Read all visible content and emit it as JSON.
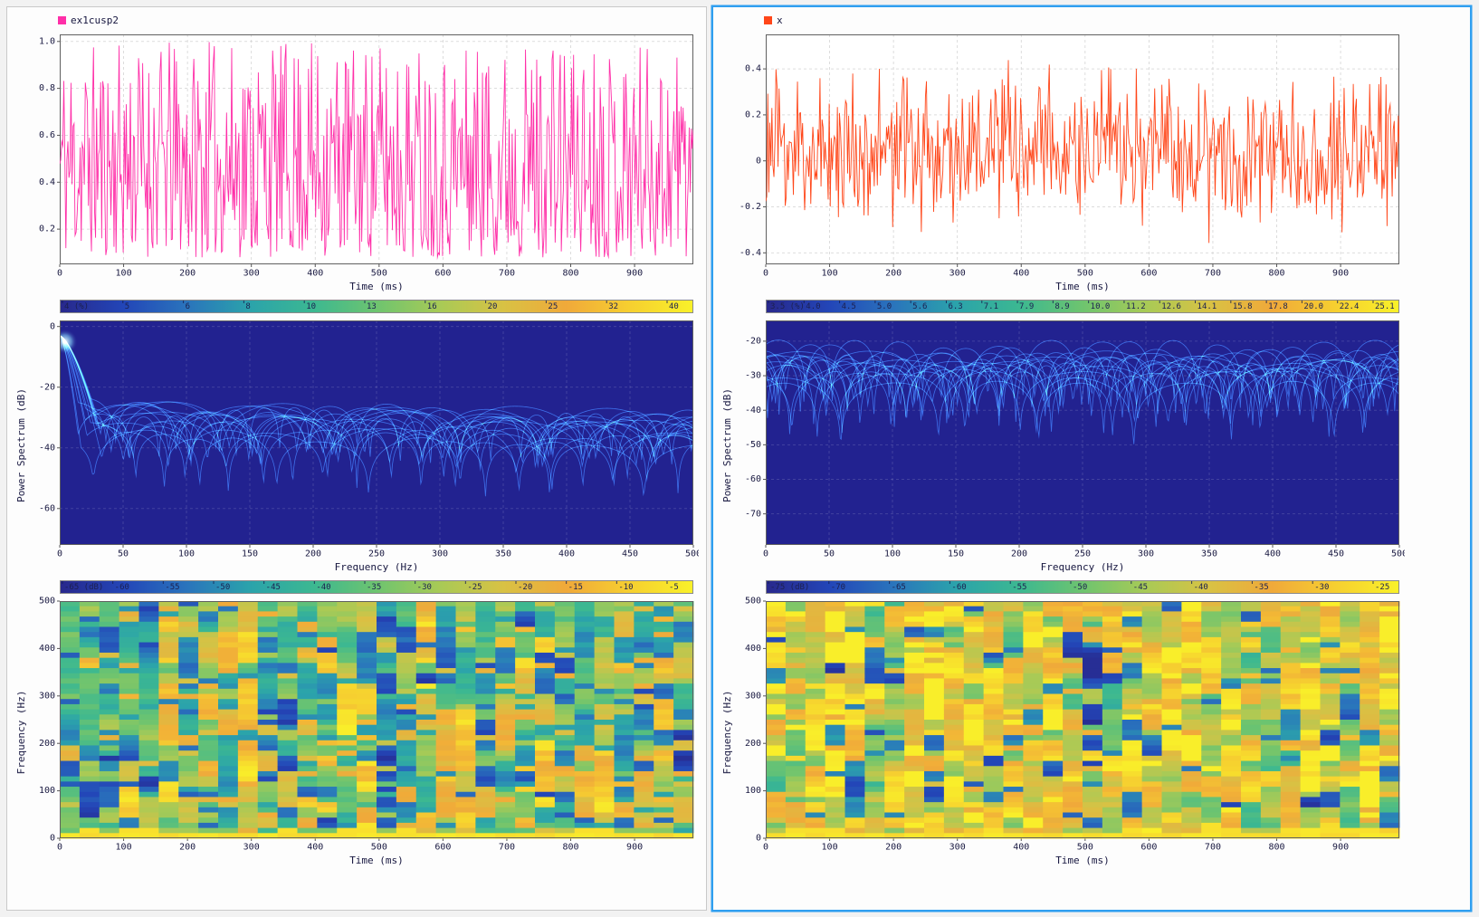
{
  "app": {
    "background_color": "#f2f2f2",
    "selection_color": "#2f9ff0"
  },
  "panels": [
    {
      "name": "left",
      "selected": false
    },
    {
      "name": "right",
      "selected": true
    }
  ],
  "chart_data": [
    {
      "panel": "left",
      "role": "waveform",
      "type": "line",
      "label": "ex1cusp2",
      "color": "#ff2fa8",
      "xlabel": "Time (ms)",
      "ylabel": "",
      "xlim": [
        0,
        992
      ],
      "ylim": [
        0.05,
        1.03
      ],
      "xticks": [
        0,
        100,
        200,
        300,
        400,
        500,
        600,
        700,
        800,
        900
      ],
      "yticks": [
        0.2,
        0.4,
        0.6,
        0.8,
        1.0
      ],
      "ytick_labels": [
        "0.2",
        "0.4",
        "0.6",
        "0.8",
        "1.0"
      ],
      "grid": true,
      "signal": {
        "kind": "uniform-positive-noise",
        "n": 620,
        "seed": 11,
        "min": 0.08,
        "max": 1.0,
        "skew": 1.25,
        "description": "dense noisy positive signal, values approx 0.1 to 1.0, mean approx 0.42"
      }
    },
    {
      "panel": "left",
      "role": "power-spectrum",
      "type": "line-ensemble",
      "xlabel": "Frequency (Hz)",
      "ylabel": "Power Spectrum (dB)",
      "xlim": [
        0,
        500
      ],
      "ylim": [
        -72,
        2
      ],
      "xticks": [
        0,
        50,
        100,
        150,
        200,
        250,
        300,
        350,
        400,
        450,
        500
      ],
      "yticks": [
        0,
        -20,
        -40,
        -60
      ],
      "ytick_labels": [
        "0",
        "-20",
        "-40",
        "-60"
      ],
      "background": "#222290",
      "curve_color": "#44c2da",
      "curves": {
        "count": 16,
        "seed": 31,
        "plateau": -30,
        "start_db": -3,
        "mainlobe": true,
        "tilt": -4,
        "description": "overlapping windowed spectra: peak near 0 dB at 0 Hz, plateau around -25 to -35 dB with periodic deep lobes to -50/-65 dB"
      },
      "colormap": [
        "#28288c",
        "#2346b8",
        "#2a74bc",
        "#2ba3ab",
        "#3cb891",
        "#6ec46f",
        "#a8ca56",
        "#d8c244",
        "#f0a93a",
        "#f6cf30",
        "#f9f129"
      ],
      "colorbar": {
        "unit": "(%)",
        "labels": [
          "4",
          "5",
          "6",
          "8",
          "10",
          "13",
          "16",
          "20",
          "25",
          "32",
          "40"
        ]
      }
    },
    {
      "panel": "left",
      "role": "spectrogram",
      "type": "heatmap",
      "xlabel": "Time (ms)",
      "ylabel": "Frequency (Hz)",
      "xlim": [
        0,
        992
      ],
      "ylim": [
        0,
        500
      ],
      "xticks": [
        0,
        100,
        200,
        300,
        400,
        500,
        600,
        700,
        800,
        900
      ],
      "yticks": [
        0,
        100,
        200,
        300,
        400,
        500
      ],
      "ytick_labels": [
        "0",
        "100",
        "200",
        "300",
        "400",
        "500"
      ],
      "grid": {
        "cols": 32,
        "rows": 46,
        "seed": 51,
        "base": 0.52,
        "spread": 0.36,
        "streak_chance": 0.05,
        "bottom_value": 0.95,
        "description": "teal/green/yellow time-frequency map, roughly -65 to -5 dB, bright yellow band at lowest frequencies, scattered dark blue notches"
      },
      "colormap": [
        "#28288c",
        "#2346b8",
        "#2a74bc",
        "#2ba3ab",
        "#3cb891",
        "#6ec46f",
        "#a8ca56",
        "#d8c244",
        "#f0a93a",
        "#f6cf30",
        "#f9f129"
      ],
      "colorbar": {
        "unit": "(dB)",
        "labels": [
          "-65",
          "-60",
          "-55",
          "-50",
          "-45",
          "-40",
          "-35",
          "-30",
          "-25",
          "-20",
          "-15",
          "-10",
          "-5"
        ]
      }
    },
    {
      "panel": "right",
      "role": "waveform",
      "type": "line",
      "label": "x",
      "color": "#ff4619",
      "xlabel": "Time (ms)",
      "ylabel": "",
      "xlim": [
        0,
        992
      ],
      "ylim": [
        -0.45,
        0.55
      ],
      "xticks": [
        0,
        100,
        200,
        300,
        400,
        500,
        600,
        700,
        800,
        900
      ],
      "yticks": [
        -0.4,
        -0.2,
        0,
        0.2,
        0.4
      ],
      "ytick_labels": [
        "-0.4",
        "-0.2",
        "0",
        "0.2",
        "0.4"
      ],
      "grid": true,
      "signal": {
        "kind": "triangular-centered-noise",
        "n": 620,
        "seed": 23,
        "min": -0.42,
        "max": 0.52,
        "description": "zero-mean noisy signal, values approx -0.4 to +0.5"
      }
    },
    {
      "panel": "right",
      "role": "power-spectrum",
      "type": "line-ensemble",
      "xlabel": "Frequency (Hz)",
      "ylabel": "Power Spectrum (dB)",
      "xlim": [
        0,
        500
      ],
      "ylim": [
        -79,
        -14
      ],
      "xticks": [
        0,
        50,
        100,
        150,
        200,
        250,
        300,
        350,
        400,
        450,
        500
      ],
      "yticks": [
        -20,
        -30,
        -40,
        -50,
        -60,
        -70
      ],
      "ytick_labels": [
        "-20",
        "-30",
        "-40",
        "-50",
        "-60",
        "-70"
      ],
      "background": "#222290",
      "curve_color": "#44c2da",
      "curves": {
        "count": 16,
        "seed": 41,
        "plateau": -26,
        "start_db": -26,
        "mainlobe": false,
        "tilt": 0,
        "description": "overlapping spectra oscillating between about -20 and -45 dB across all frequencies with periodic deep lobes"
      },
      "colormap": [
        "#28288c",
        "#2346b8",
        "#2a74bc",
        "#2ba3ab",
        "#3cb891",
        "#6ec46f",
        "#a8ca56",
        "#d8c244",
        "#f0a93a",
        "#f6cf30",
        "#f9f129"
      ],
      "colorbar": {
        "unit": "(%)",
        "labels": [
          "3.5",
          "4.0",
          "4.5",
          "5.0",
          "5.6",
          "6.3",
          "7.1",
          "7.9",
          "8.9",
          "10.0",
          "11.2",
          "12.6",
          "14.1",
          "15.8",
          "17.8",
          "20.0",
          "22.4",
          "25.1"
        ]
      }
    },
    {
      "panel": "right",
      "role": "spectrogram",
      "type": "heatmap",
      "xlabel": "Time (ms)",
      "ylabel": "Frequency (Hz)",
      "xlim": [
        0,
        992
      ],
      "ylim": [
        0,
        500
      ],
      "xticks": [
        0,
        100,
        200,
        300,
        400,
        500,
        600,
        700,
        800,
        900
      ],
      "yticks": [
        0,
        100,
        200,
        300,
        400,
        500
      ],
      "ytick_labels": [
        "0",
        "100",
        "200",
        "300",
        "400",
        "500"
      ],
      "grid": {
        "cols": 32,
        "rows": 46,
        "seed": 61,
        "base": 0.76,
        "spread": 0.3,
        "streak_chance": 0.06,
        "bottom_value": 0.95,
        "description": "yellow-dominant time-frequency map, roughly -75 to -25 dB, bright yellow low-frequency band, scattered blue/teal notches"
      },
      "colormap": [
        "#28288c",
        "#2346b8",
        "#2a74bc",
        "#2ba3ab",
        "#3cb891",
        "#6ec46f",
        "#a8ca56",
        "#d8c244",
        "#f0a93a",
        "#f6cf30",
        "#f9f129"
      ],
      "colorbar": {
        "unit": "(dB)",
        "labels": [
          "-75",
          "-70",
          "-65",
          "-60",
          "-55",
          "-50",
          "-45",
          "-40",
          "-35",
          "-30",
          "-25"
        ]
      }
    }
  ]
}
